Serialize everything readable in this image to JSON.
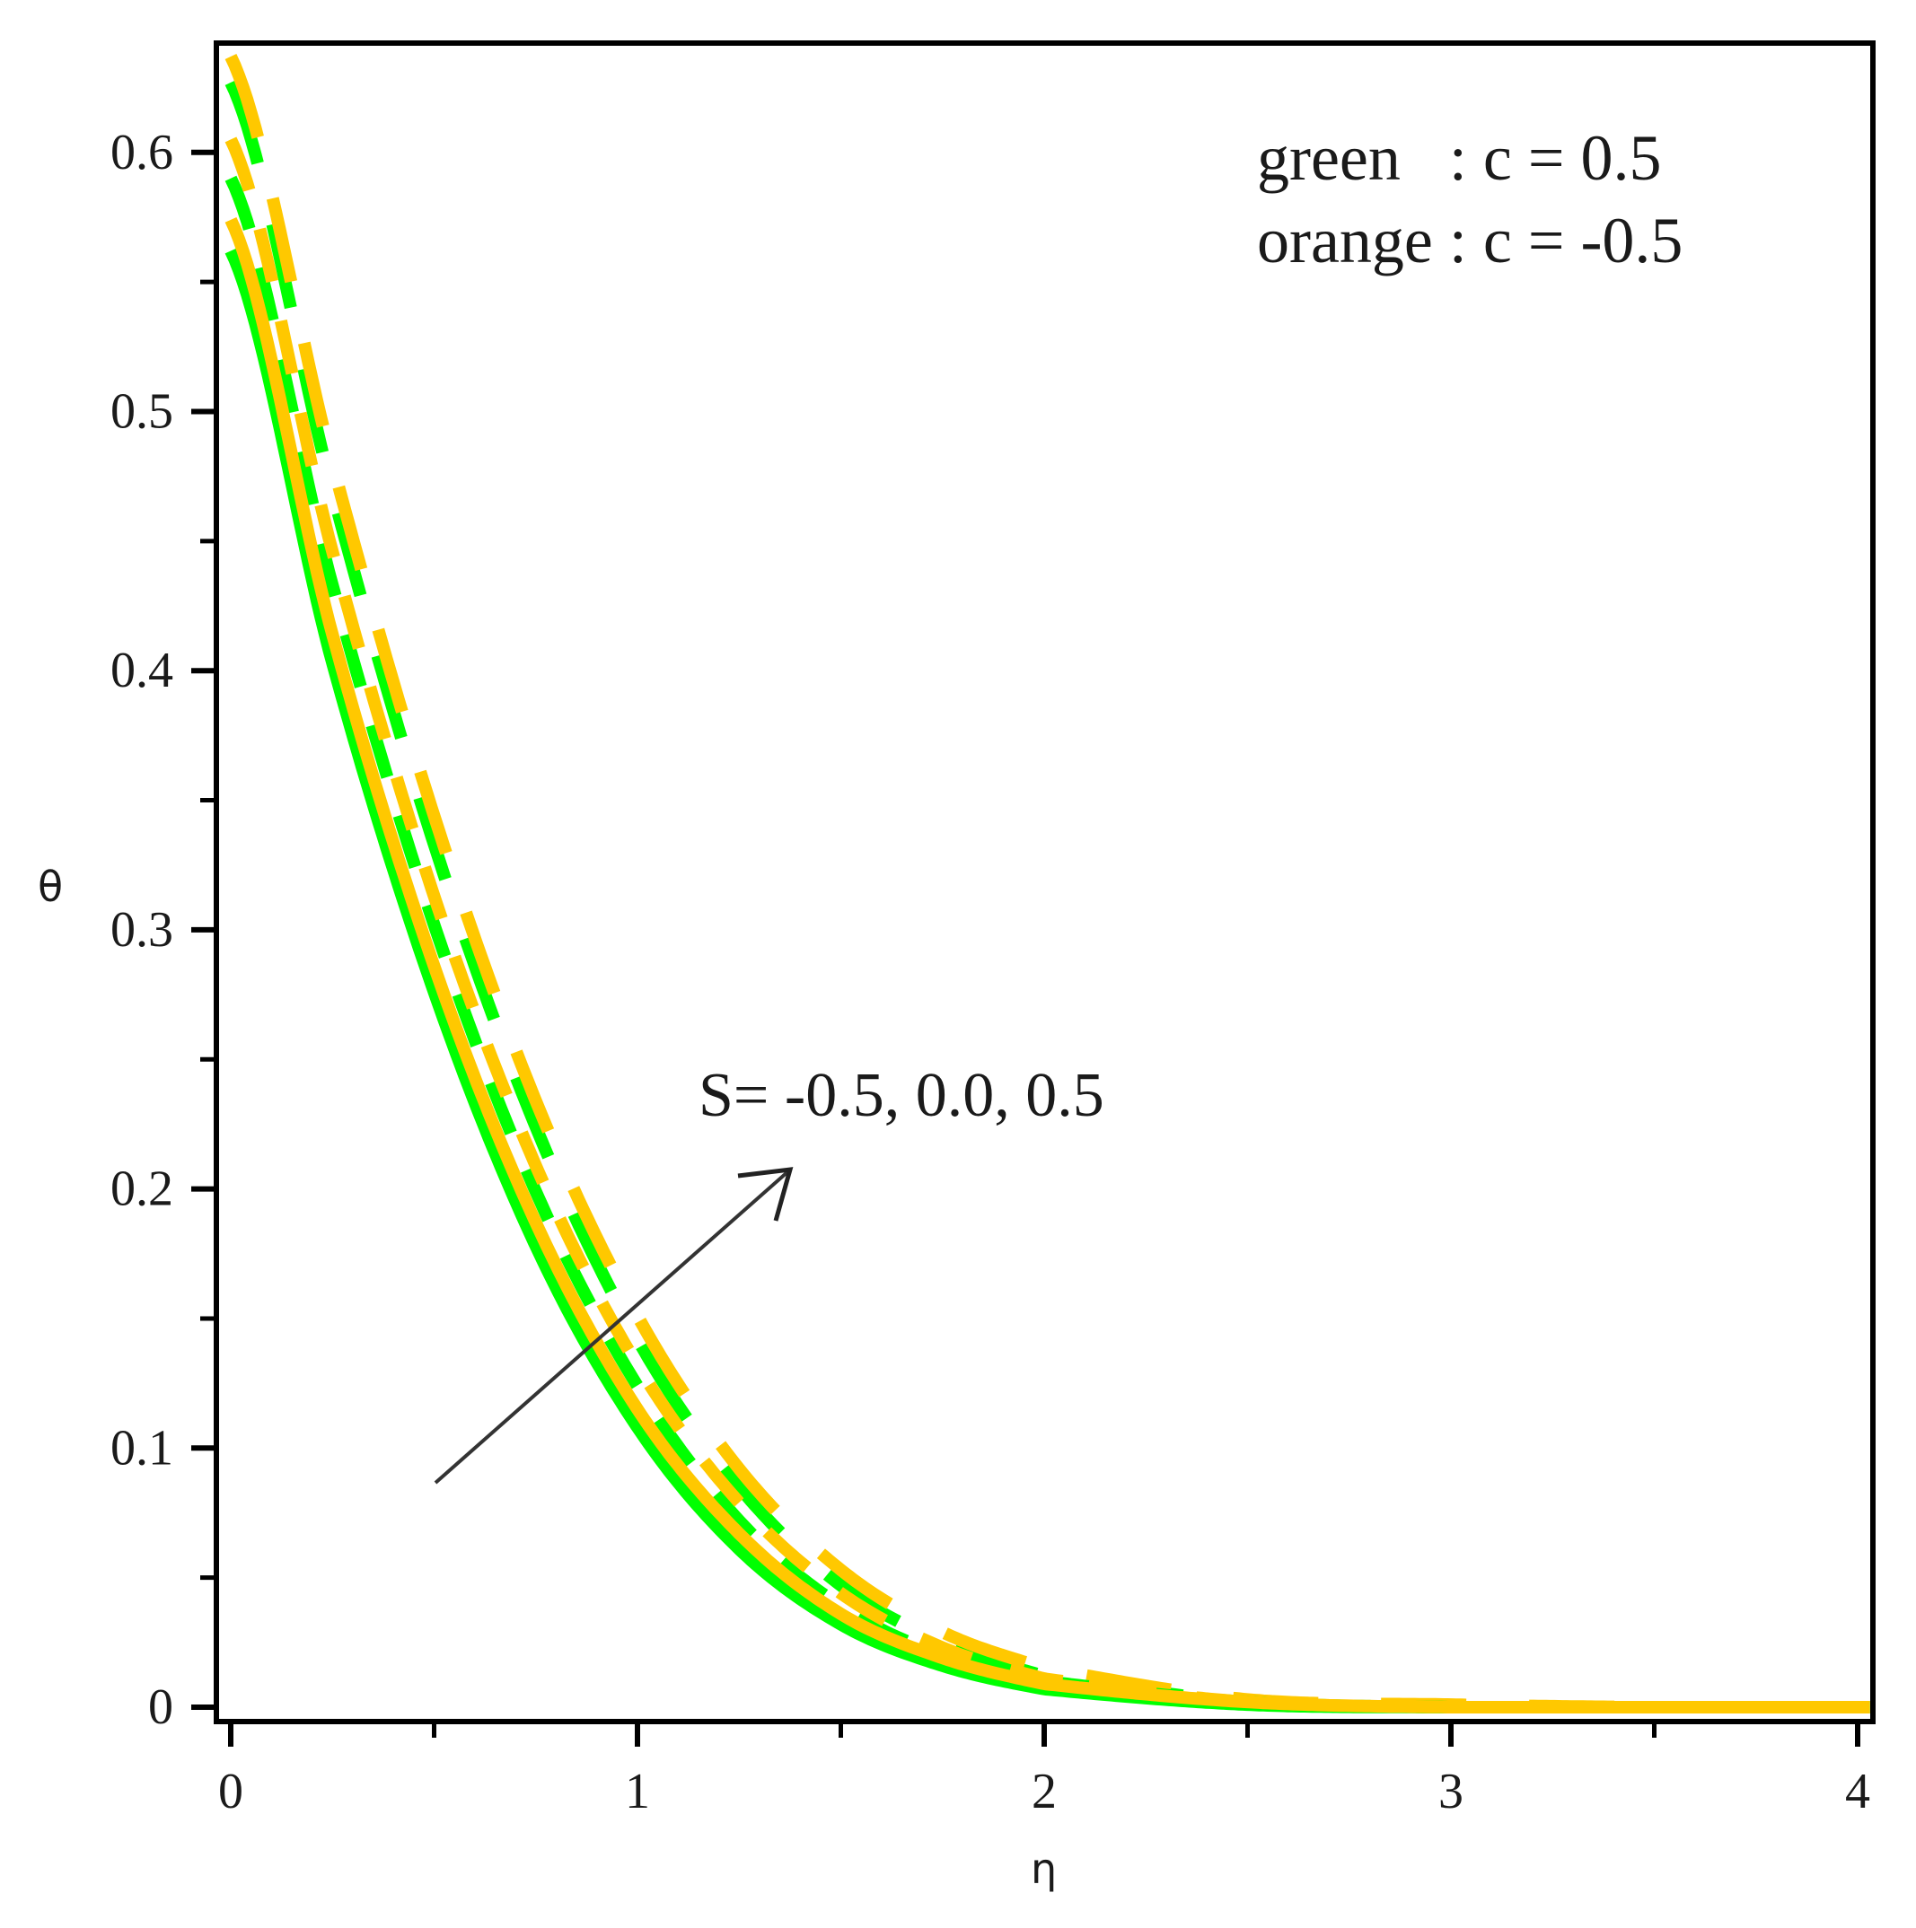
{
  "chart_data": {
    "type": "line",
    "title": "",
    "xlabel": "η",
    "ylabel": "θ",
    "xlim": [
      0,
      4.04
    ],
    "ylim": [
      0,
      0.645
    ],
    "grid": false,
    "x_ticks": [
      0,
      1,
      2,
      3,
      4
    ],
    "x_tick_labels": [
      "0",
      "1",
      "2",
      "3",
      "4"
    ],
    "x_minor_ticks": [
      0.5,
      1.5,
      2.5,
      3.5
    ],
    "y_ticks": [
      0,
      0.1,
      0.2,
      0.3,
      0.4,
      0.5,
      0.6
    ],
    "y_tick_labels": [
      "0",
      "0.1",
      "0.2",
      "0.3",
      "0.4",
      "0.5",
      "0.6"
    ],
    "y_minor_ticks": [
      0.05,
      0.15,
      0.25,
      0.35,
      0.45,
      0.55
    ],
    "legend": {
      "position": "upper right (text annotation)",
      "entries": [
        "green   : c = 0.5",
        "orange : c = -0.5"
      ]
    },
    "annotations": [
      {
        "text": "S= -0.5, 0.0, 0.5",
        "type": "label"
      },
      {
        "text": "arrow indicating increasing S",
        "type": "arrow"
      }
    ],
    "x": [
      0,
      0.25,
      0.5,
      0.75,
      1.0,
      1.25,
      1.5,
      1.75,
      2.0,
      2.5,
      3.0,
      3.5,
      4.0
    ],
    "series": [
      {
        "name": "c = 0.5, S = -0.5",
        "color": "#00ff00",
        "style": "solid",
        "values": [
          0.562,
          0.403,
          0.276,
          0.178,
          0.108,
          0.061,
          0.032,
          0.016,
          0.007,
          0.001,
          0.0,
          0.0,
          0.0
        ]
      },
      {
        "name": "c = 0.5, S = 0.0",
        "color": "#00ff00",
        "style": "dashdot",
        "values": [
          0.59,
          0.433,
          0.302,
          0.199,
          0.124,
          0.072,
          0.039,
          0.02,
          0.01,
          0.002,
          0.0,
          0.0,
          0.0
        ]
      },
      {
        "name": "c = 0.5, S = 0.5",
        "color": "#00ff00",
        "style": "dash",
        "values": [
          0.627,
          0.469,
          0.333,
          0.224,
          0.142,
          0.085,
          0.047,
          0.025,
          0.012,
          0.002,
          0.0,
          0.0,
          0.0
        ]
      },
      {
        "name": "c = -0.5, S = -0.5",
        "color": "#ffc800",
        "style": "solid",
        "values": [
          0.574,
          0.414,
          0.286,
          0.187,
          0.115,
          0.067,
          0.036,
          0.019,
          0.009,
          0.002,
          0.0,
          0.0,
          0.0
        ]
      },
      {
        "name": "c = -0.5, S = 0.0",
        "color": "#ffc800",
        "style": "dashdot",
        "values": [
          0.605,
          0.446,
          0.313,
          0.209,
          0.132,
          0.079,
          0.044,
          0.023,
          0.011,
          0.002,
          0.0,
          0.0,
          0.0
        ]
      },
      {
        "name": "c = -0.5, S = 0.5",
        "color": "#ffc800",
        "style": "dash",
        "values": [
          0.637,
          0.48,
          0.344,
          0.234,
          0.151,
          0.092,
          0.053,
          0.029,
          0.015,
          0.003,
          0.001,
          0.0,
          0.0
        ]
      }
    ]
  },
  "labels": {
    "y_axis": "θ",
    "x_axis": "η",
    "legend_green": "green   : c = 0.5",
    "legend_orange": "orange : c = -0.5",
    "annotation": "S= -0.5, 0.0, 0.5"
  },
  "colors": {
    "green": "#00ff00",
    "orange": "#ffc800",
    "axis": "#000000",
    "arrow": "#333333"
  }
}
